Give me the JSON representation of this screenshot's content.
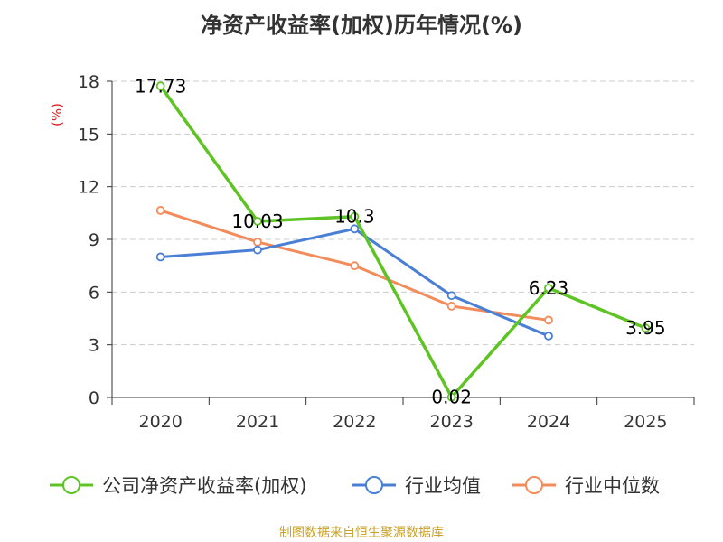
{
  "chart_data": {
    "type": "line",
    "title": "净资产收益率(加权)历年情况(%)",
    "ylabel": "(%)",
    "xlabel": "",
    "ylim": [
      0,
      18
    ],
    "yticks": [
      0,
      3,
      6,
      9,
      12,
      15,
      18
    ],
    "categories": [
      "2020",
      "2021",
      "2022",
      "2023",
      "2024",
      "2025"
    ],
    "grid": true,
    "legend_position": "bottom",
    "series": [
      {
        "name": "公司净资产收益率(加权)",
        "color": "#5ec423",
        "values": [
          17.73,
          10.03,
          10.3,
          0.02,
          6.23,
          3.95
        ],
        "labels": [
          "17.73",
          "10.03",
          "10.3",
          "0.02",
          "6.23",
          "3.95"
        ]
      },
      {
        "name": "行业均值",
        "color": "#4a7fd6",
        "values": [
          8.0,
          8.4,
          9.6,
          5.8,
          3.5,
          null
        ]
      },
      {
        "name": "行业中位数",
        "color": "#f38b5a",
        "values": [
          10.65,
          8.85,
          7.5,
          5.2,
          4.4,
          null
        ]
      }
    ]
  },
  "source_text": "制图数据来自恒生聚源数据库"
}
